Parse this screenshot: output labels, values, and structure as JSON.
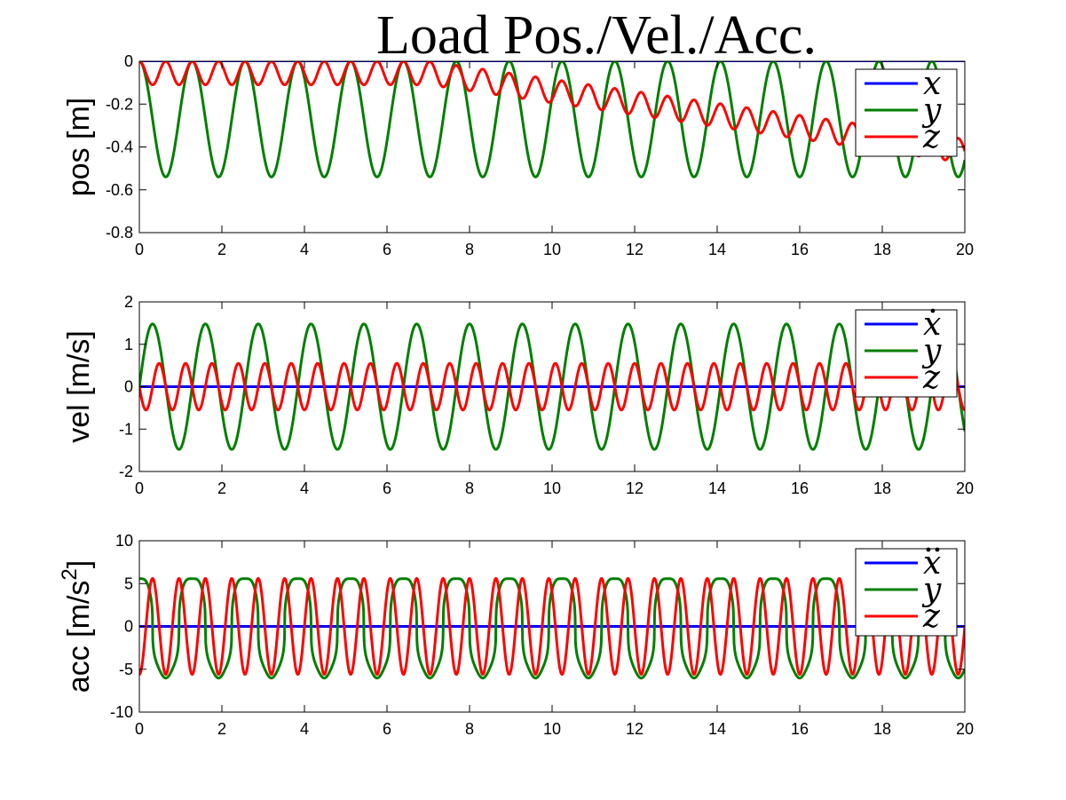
{
  "figure": {
    "title": "Load Pos./Vel./Acc."
  },
  "chart_data": [
    {
      "type": "line",
      "id": "pos",
      "ylabel": "pos [m]",
      "ylabel_sup": "",
      "xlim": [
        0,
        20
      ],
      "ylim": [
        -0.8,
        0
      ],
      "xticks": [
        0,
        2,
        4,
        6,
        8,
        10,
        12,
        14,
        16,
        18,
        20
      ],
      "yticks": [
        -0.8,
        -0.6,
        -0.4,
        -0.2,
        0
      ],
      "ytick_labels": [
        "-0.8",
        "-0.6",
        "-0.4",
        "-0.2",
        "0"
      ],
      "grid": false,
      "legend_placement": "top-right",
      "legend_dots": 0,
      "series": [
        {
          "name": "x",
          "color": "#0000ff",
          "kind": "const",
          "value": 0
        },
        {
          "name": "y",
          "color": "#007f00",
          "kind": "cos_dip",
          "amplitude": 0.54,
          "period": 1.28
        },
        {
          "name": "z",
          "color": "#ff0000",
          "kind": "drift_osc",
          "amplitude": 0.055,
          "period": 0.64,
          "offset": -0.055,
          "drift_start": 7.0,
          "drift_rate": -0.028
        }
      ]
    },
    {
      "type": "line",
      "id": "vel",
      "ylabel": "vel [m/s]",
      "ylabel_sup": "",
      "xlim": [
        0,
        20
      ],
      "ylim": [
        -2,
        2
      ],
      "xticks": [
        0,
        2,
        4,
        6,
        8,
        10,
        12,
        14,
        16,
        18,
        20
      ],
      "yticks": [
        -2,
        -1,
        0,
        1,
        2
      ],
      "ytick_labels": [
        "-2",
        "-1",
        "0",
        "1",
        "2"
      ],
      "grid": false,
      "legend_placement": "top-right",
      "legend_dots": 1,
      "series": [
        {
          "name": "x",
          "color": "#0000ff",
          "kind": "const",
          "value": 0
        },
        {
          "name": "y",
          "color": "#007f00",
          "kind": "sin",
          "amplitude": 1.48,
          "period": 1.28
        },
        {
          "name": "z",
          "color": "#ff0000",
          "kind": "neg_sin",
          "amplitude": 0.55,
          "period": 0.64
        }
      ]
    },
    {
      "type": "line",
      "id": "acc",
      "ylabel": "acc [m/s",
      "ylabel_sup": "2",
      "ylabel_end": "]",
      "xlim": [
        0,
        20
      ],
      "ylim": [
        -10,
        10
      ],
      "xticks": [
        0,
        2,
        4,
        6,
        8,
        10,
        12,
        14,
        16,
        18,
        20
      ],
      "yticks": [
        -10,
        -5,
        0,
        5,
        10
      ],
      "ytick_labels": [
        "-10",
        "-5",
        "0",
        "5",
        "10"
      ],
      "grid": false,
      "legend_placement": "top-right",
      "legend_dots": 2,
      "series": [
        {
          "name": "x",
          "color": "#0000ff",
          "kind": "const",
          "value": 0
        },
        {
          "name": "y",
          "color": "#007f00",
          "kind": "square_ripple",
          "amplitude": 5.8,
          "period": 1.28
        },
        {
          "name": "z",
          "color": "#ff0000",
          "kind": "neg_cos",
          "amplitude": 5.6,
          "period": 0.64
        }
      ]
    }
  ]
}
